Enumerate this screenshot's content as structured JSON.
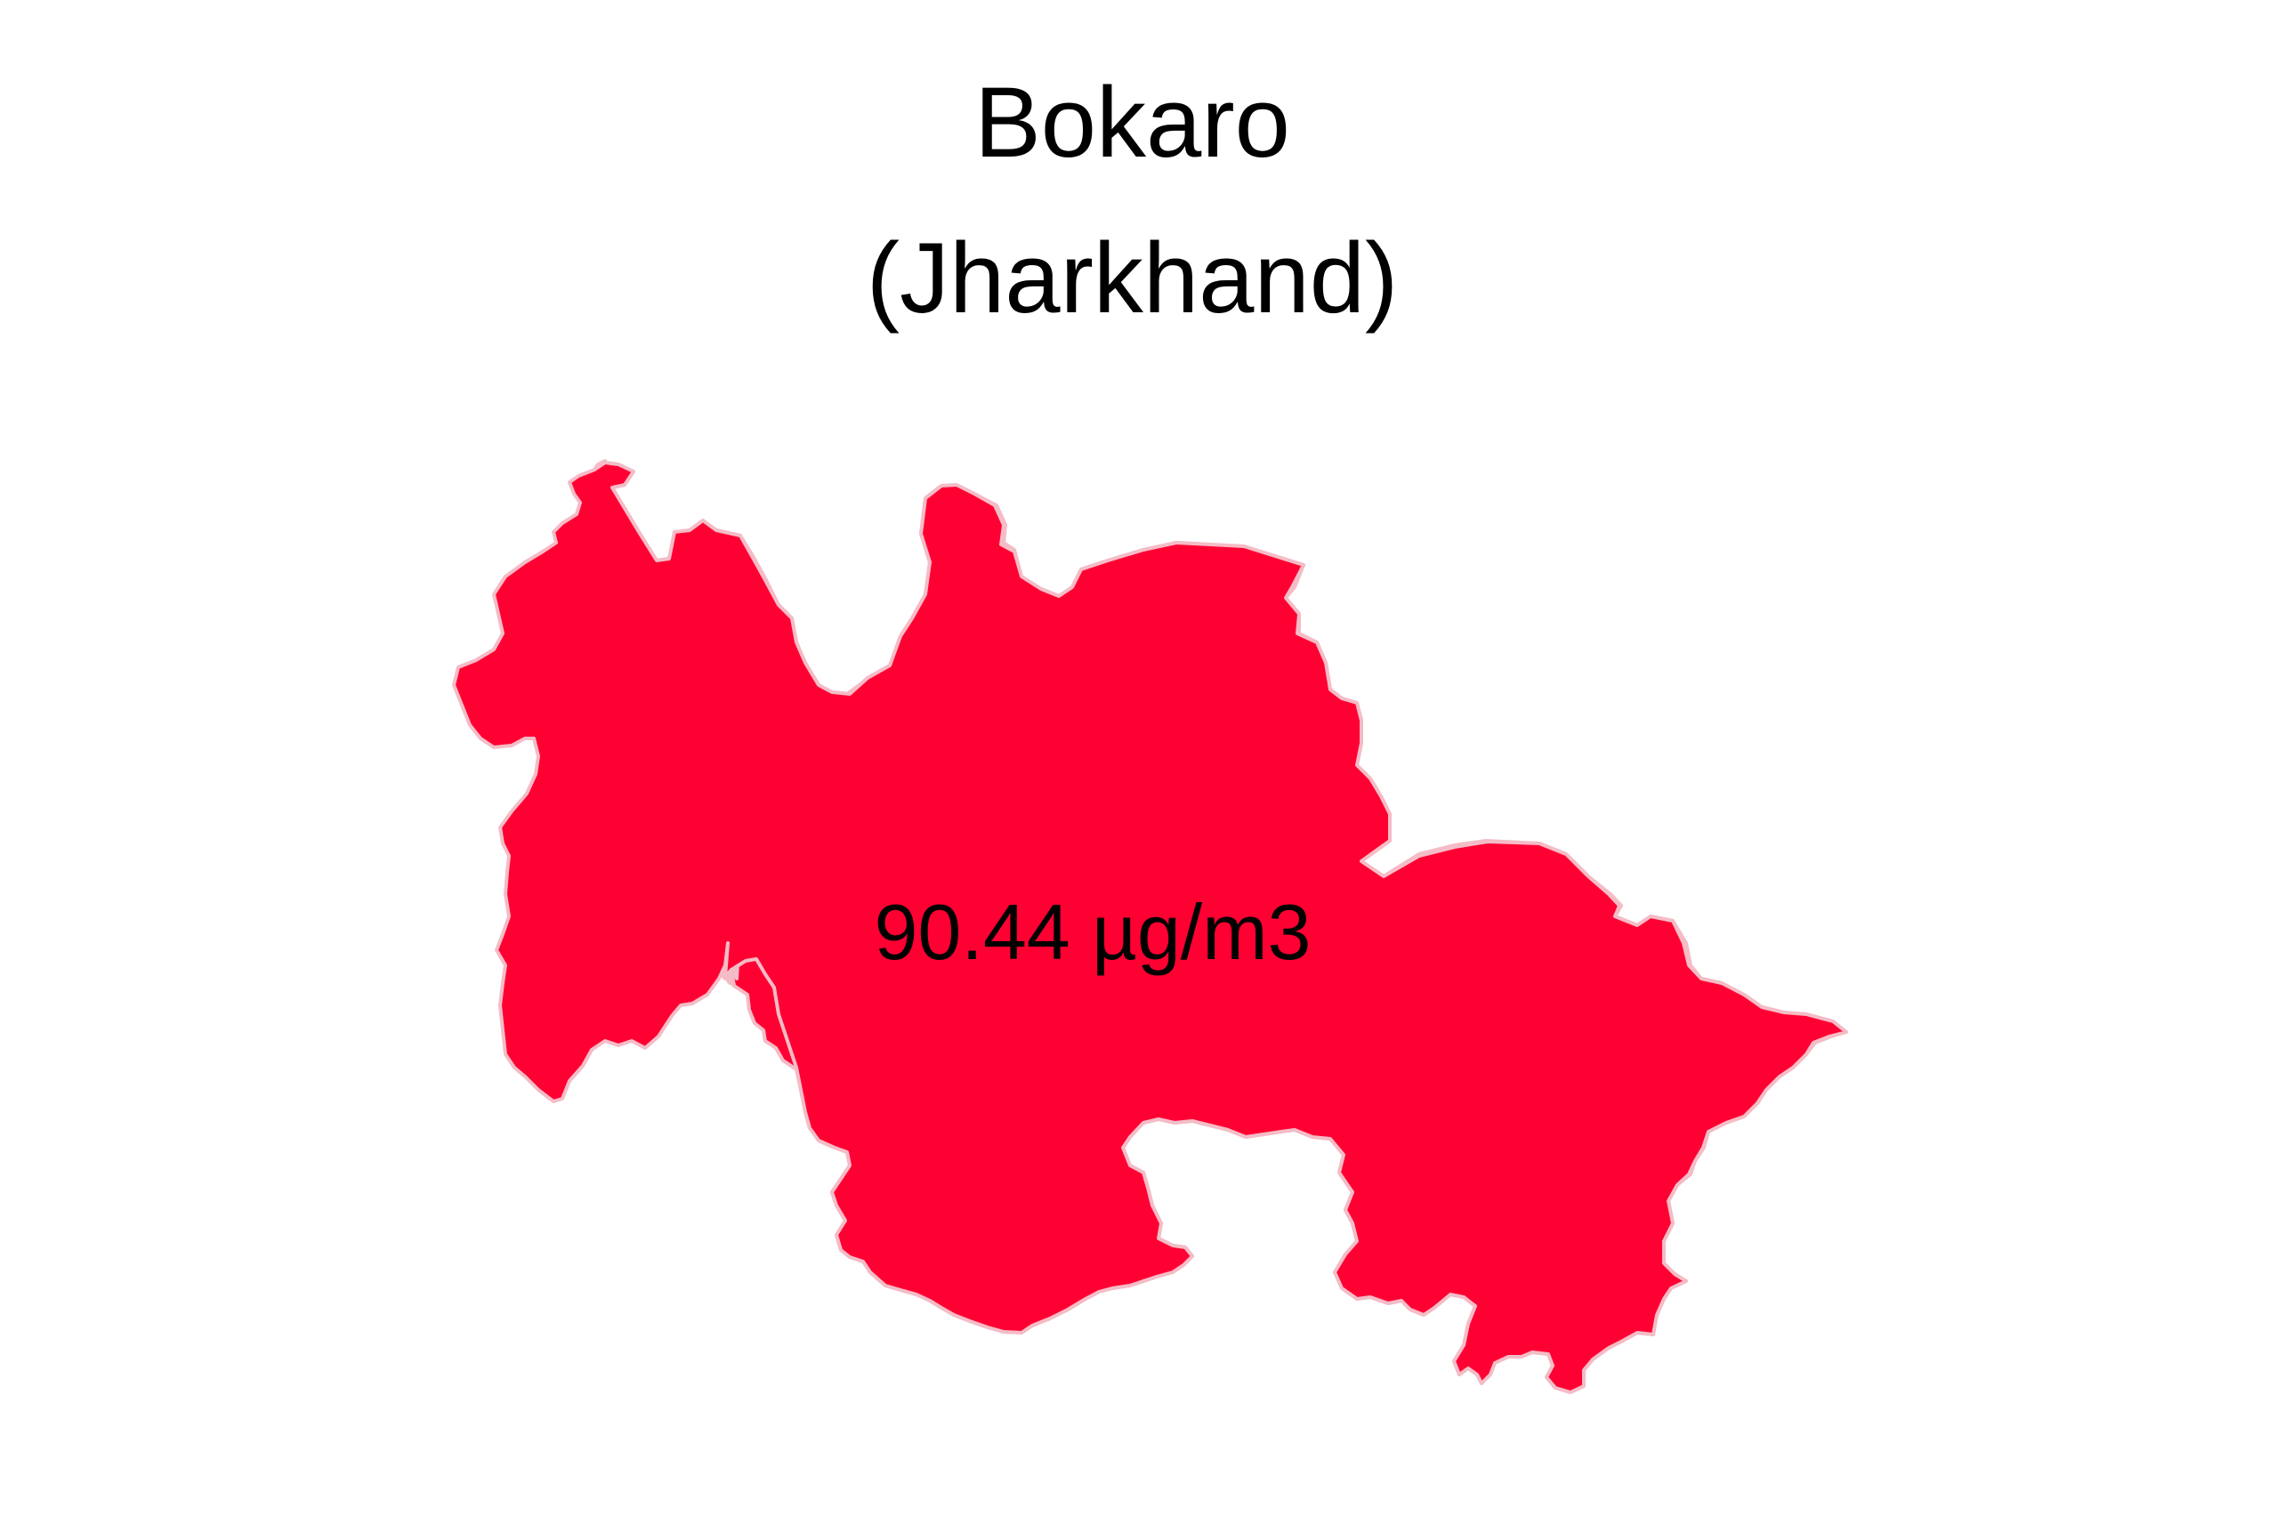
{
  "map": {
    "title": "Bokaro",
    "subtitle": "(Jharkhand)",
    "region_label": "90.44 µg/m3",
    "fill_color": "#ff0033",
    "border_color": "#f4bcc6"
  }
}
